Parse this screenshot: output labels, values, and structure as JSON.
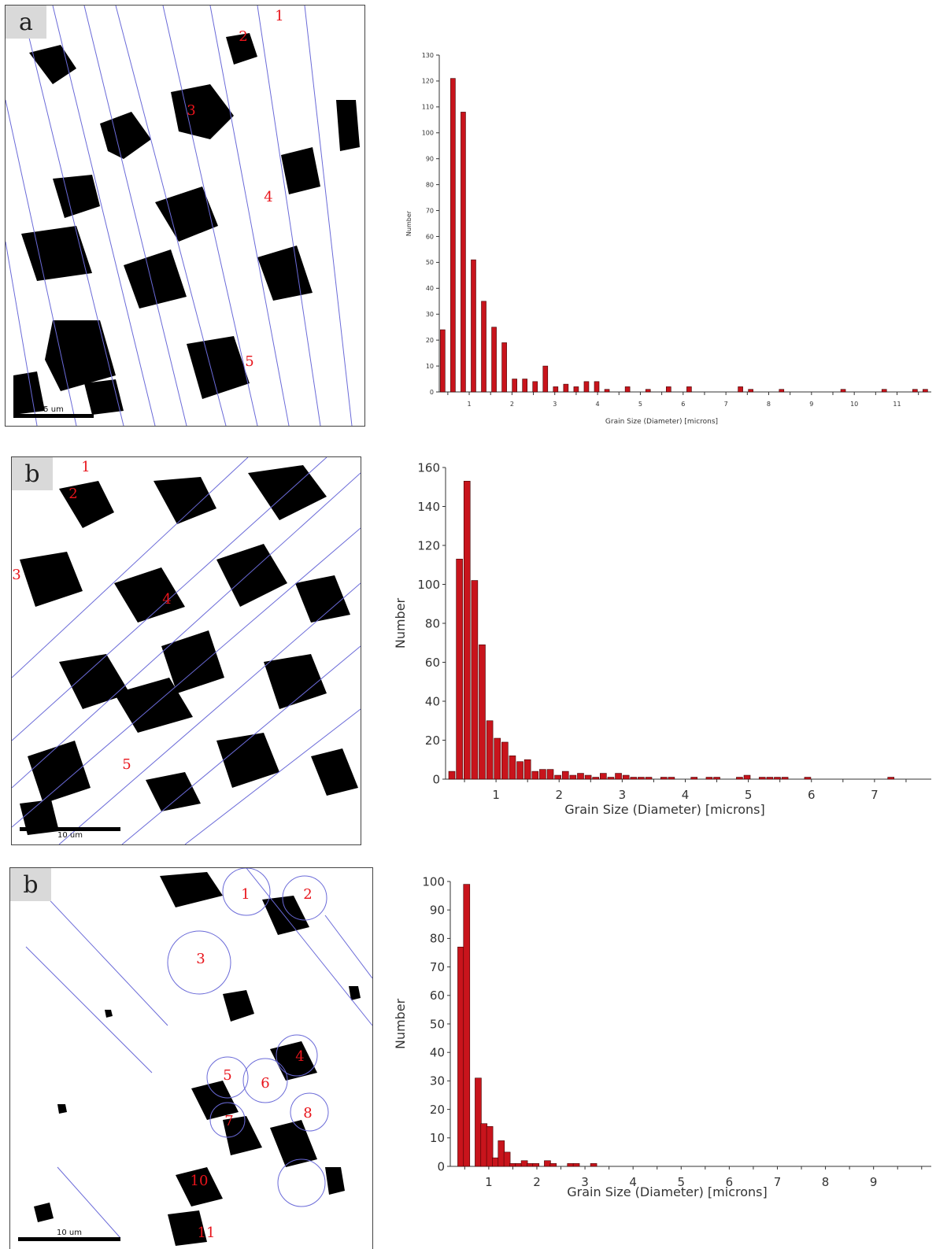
{
  "panels": [
    {
      "letter": "a",
      "scale_label": "5 um",
      "grain_labels": [
        "1",
        "2",
        "3",
        "4",
        "5"
      ]
    },
    {
      "letter": "b",
      "scale_label": "10 um",
      "grain_labels": [
        "1",
        "2",
        "3",
        "4",
        "5"
      ]
    },
    {
      "letter": "b",
      "scale_label": "10 um",
      "grain_labels": [
        "1",
        "2",
        "3",
        "4",
        "5",
        "6",
        "7",
        "8",
        "10",
        "11"
      ]
    }
  ],
  "colors": {
    "bar": "#c8141c",
    "bar_edge": "#400000",
    "boundary": "#6a6ad8",
    "grain_label": "#e8141b"
  },
  "chart_data": [
    {
      "type": "bar",
      "xlabel": "Grain Size (Diameter) [microns]",
      "ylabel": "Number",
      "xlim": [
        0.3,
        11.8
      ],
      "ylim": [
        0,
        130
      ],
      "xticks": [
        1,
        2,
        3,
        4,
        5,
        6,
        7,
        8,
        9,
        10,
        11
      ],
      "yticks": [
        0,
        10,
        20,
        30,
        40,
        50,
        60,
        70,
        80,
        90,
        100,
        110,
        120,
        130
      ],
      "x": [
        0.38,
        0.62,
        0.86,
        1.1,
        1.34,
        1.58,
        1.82,
        2.06,
        2.3,
        2.54,
        2.78,
        3.02,
        3.26,
        3.5,
        3.74,
        3.98,
        4.22,
        4.7,
        5.18,
        5.66,
        6.14,
        7.34,
        7.58,
        8.3,
        9.74,
        10.7,
        11.42,
        11.66
      ],
      "values": [
        24,
        121,
        108,
        51,
        35,
        25,
        19,
        5,
        5,
        4,
        10,
        2,
        3,
        2,
        4,
        4,
        1,
        2,
        1,
        2,
        2,
        2,
        1,
        1,
        1,
        1,
        1,
        1
      ]
    },
    {
      "type": "bar",
      "xlabel": "Grain Size (Diameter) [microns]",
      "ylabel": "Number",
      "xlim": [
        0.2,
        7.9
      ],
      "ylim": [
        0,
        160
      ],
      "xticks": [
        1,
        2,
        3,
        4,
        5,
        6,
        7
      ],
      "yticks": [
        0,
        20,
        40,
        60,
        80,
        100,
        120,
        140,
        160
      ],
      "x": [
        0.3,
        0.42,
        0.54,
        0.66,
        0.78,
        0.9,
        1.02,
        1.14,
        1.26,
        1.38,
        1.5,
        1.62,
        1.74,
        1.86,
        1.98,
        2.1,
        2.22,
        2.34,
        2.46,
        2.58,
        2.7,
        2.82,
        2.94,
        3.06,
        3.18,
        3.3,
        3.42,
        3.66,
        3.78,
        4.14,
        4.38,
        4.5,
        4.86,
        4.98,
        5.22,
        5.34,
        5.46,
        5.58,
        5.94,
        7.26
      ],
      "values": [
        4,
        113,
        153,
        102,
        69,
        30,
        21,
        19,
        12,
        9,
        10,
        4,
        5,
        5,
        2,
        4,
        2,
        3,
        2,
        1,
        3,
        1,
        3,
        2,
        1,
        1,
        1,
        1,
        1,
        1,
        1,
        1,
        1,
        2,
        1,
        1,
        1,
        1,
        1,
        1
      ]
    },
    {
      "type": "bar",
      "xlabel": "Grain Size (Diameter) [microns]",
      "ylabel": "Number",
      "xlim": [
        0.2,
        10.2
      ],
      "ylim": [
        0,
        100
      ],
      "xticks": [
        1,
        2,
        3,
        4,
        5,
        6,
        7,
        8,
        9
      ],
      "yticks": [
        0,
        10,
        20,
        30,
        40,
        50,
        60,
        70,
        80,
        90,
        100
      ],
      "x": [
        0.3,
        0.42,
        0.54,
        0.66,
        0.78,
        0.9,
        1.02,
        1.14,
        1.26,
        1.38,
        1.5,
        1.62,
        1.74,
        1.86,
        1.98,
        2.1,
        2.22,
        2.34,
        2.46,
        2.58,
        2.7,
        2.82,
        2.94,
        3.06,
        3.18,
        3.3,
        3.42,
        3.54,
        3.66,
        3.78,
        3.9,
        4.02,
        4.14
      ],
      "values": [
        0,
        77,
        99,
        0,
        31,
        15,
        14,
        3,
        9,
        5,
        1,
        1,
        2,
        1,
        1,
        0,
        2,
        1,
        0,
        0,
        1,
        1,
        0,
        0,
        1,
        0,
        0,
        0,
        0,
        0,
        0,
        0,
        0
      ]
    }
  ]
}
